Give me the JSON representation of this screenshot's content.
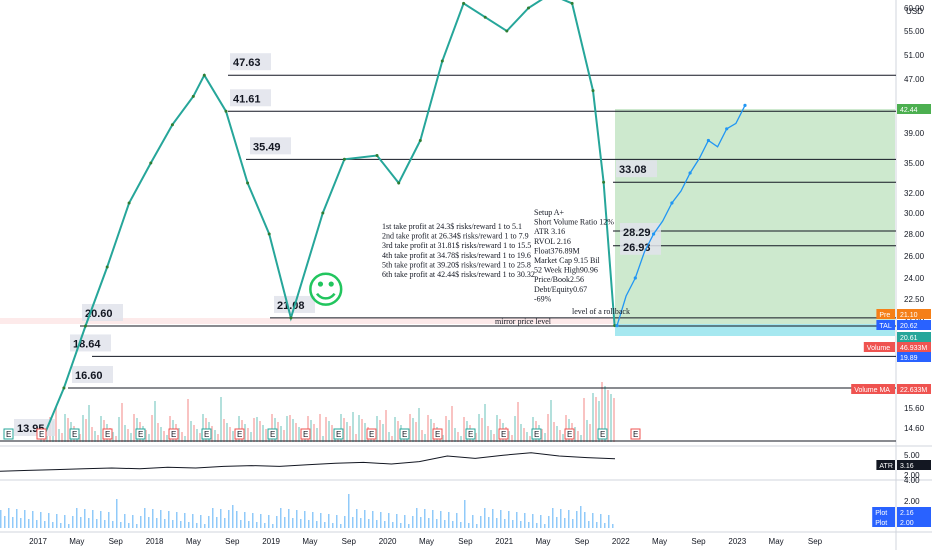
{
  "chart_data": {
    "type": "line",
    "currency": "USD",
    "price_axis_ticks": [
      "60.00",
      "55.00",
      "51.00",
      "47.00",
      "42.00",
      "39.00",
      "35.00",
      "32.00",
      "30.00",
      "28.00",
      "26.00",
      "24.00",
      "22.50",
      "21.00",
      "19.80",
      "18.60",
      "16.60",
      "15.60",
      "14.60"
    ],
    "x_ticks": [
      "2017",
      "May",
      "Sep",
      "2018",
      "May",
      "Sep",
      "2019",
      "May",
      "Sep",
      "2020",
      "May",
      "Sep",
      "2021",
      "May",
      "Sep",
      "2022",
      "May",
      "Sep",
      "2023",
      "May",
      "Sep"
    ],
    "price_series": [
      {
        "date": "2017-01",
        "value": 13.95
      },
      {
        "date": "2017-03",
        "value": 16.6
      },
      {
        "date": "2017-05",
        "value": 20.6
      },
      {
        "date": "2017-07",
        "value": 25.0
      },
      {
        "date": "2017-09",
        "value": 31.0
      },
      {
        "date": "2017-11",
        "value": 35.0
      },
      {
        "date": "2018-01",
        "value": 40.0
      },
      {
        "date": "2018-03",
        "value": 44.0
      },
      {
        "date": "2018-04",
        "value": 47.63
      },
      {
        "date": "2018-06",
        "value": 41.61
      },
      {
        "date": "2018-08",
        "value": 33.0
      },
      {
        "date": "2018-10",
        "value": 28.0
      },
      {
        "date": "2018-12",
        "value": 21.08
      },
      {
        "date": "2019-03",
        "value": 30.0
      },
      {
        "date": "2019-05",
        "value": 35.5
      },
      {
        "date": "2019-08",
        "value": 36.0
      },
      {
        "date": "2019-10",
        "value": 33.0
      },
      {
        "date": "2019-12",
        "value": 38.0
      },
      {
        "date": "2020-02",
        "value": 50.0
      },
      {
        "date": "2020-04",
        "value": 61.0
      },
      {
        "date": "2020-06",
        "value": 58.0
      },
      {
        "date": "2020-08",
        "value": 55.0
      },
      {
        "date": "2020-10",
        "value": 60.0
      },
      {
        "date": "2020-12",
        "value": 63.0
      },
      {
        "date": "2021-02",
        "value": 61.0
      },
      {
        "date": "2021-04",
        "value": 45.0
      },
      {
        "date": "2021-05",
        "value": 33.08
      },
      {
        "date": "2021-06",
        "value": 20.62
      }
    ],
    "projection_series": [
      {
        "date": "2021-06",
        "value": 20.62
      },
      {
        "date": "2021-08",
        "value": 24.0
      },
      {
        "date": "2021-10",
        "value": 28.0
      },
      {
        "date": "2021-12",
        "value": 31.0
      },
      {
        "date": "2022-02",
        "value": 34.0
      },
      {
        "date": "2022-04",
        "value": 38.0
      },
      {
        "date": "2022-06",
        "value": 39.5
      },
      {
        "date": "2022-07",
        "value": 42.44
      }
    ],
    "atr_series": [
      1.6,
      1.7,
      1.8,
      1.9,
      2.0,
      1.9,
      2.1,
      2.0,
      2.2,
      2.3,
      2.2,
      2.4,
      2.6,
      2.7,
      2.5,
      2.8,
      3.5,
      3.2,
      3.6,
      3.9,
      3.5,
      3.3,
      3.16
    ],
    "atr_ticks": [
      "5.00",
      "2.00"
    ],
    "plot_ticks": [
      "4.00",
      "2.00"
    ],
    "level_lines": [
      {
        "label": "47.63",
        "value": 47.63
      },
      {
        "label": "41.61",
        "value": 41.61
      },
      {
        "label": "35.49",
        "value": 35.49
      },
      {
        "label": "33.08",
        "value": 33.08
      },
      {
        "label": "28.29",
        "value": 28.29
      },
      {
        "label": "26.93",
        "value": 26.93
      },
      {
        "label": "21.08",
        "value": 21.08
      },
      {
        "label": "20.60",
        "value": 20.6
      },
      {
        "label": "18.64",
        "value": 18.64
      },
      {
        "label": "16.60",
        "value": 16.6
      },
      {
        "label": "13.95",
        "value": 13.95
      }
    ],
    "price_tags": [
      {
        "name": "Pre",
        "value": "21.10",
        "color": "#f57f17"
      },
      {
        "name": "TAL",
        "value": "20.62",
        "color": "#2962ff"
      },
      {
        "name": "",
        "value": "20.61",
        "color": "#26a69a"
      },
      {
        "name": "Volume",
        "value": "46.933M",
        "color": "#ef5350"
      },
      {
        "name": "",
        "value": "19.89",
        "color": "#2962ff"
      },
      {
        "name": "Volume MA",
        "value": "22.633M",
        "color": "#ef5350"
      },
      {
        "name": "",
        "value": "42.44",
        "color": "#4caf50"
      },
      {
        "name": "ATR",
        "value": "3.16",
        "color": "#131722"
      },
      {
        "name": "Plot",
        "value": "2.16",
        "color": "#2962ff"
      },
      {
        "name": "Plot",
        "value": "2.00",
        "color": "#2962ff"
      }
    ],
    "take_profit_notes": [
      "1st take profit at 24.3$ risks/reward 1 to 5.1",
      "2nd take profit at 26.34$ risks/reward 1 to 7.9",
      "3rd take profit at 31.81$ risks/reward 1 to 15.5",
      "4th take profit at 34.78$ risks/reward 1 to 19.6",
      "5th take profit at 39.20$ risks/reward 1 to 25.8",
      "6th take profit at 42.44$ risks/reward 1 to 30.32"
    ],
    "setup_notes": [
      "Setup A+",
      "Short Volume Ratio 12%",
      "ATR 3.16",
      "RVOL 2.16",
      "Float376.89M",
      "Market Cap 9.15 Bil",
      "52 Week High90.96",
      "Price/Book2.56",
      "Debt/Equity0.67",
      "-69%"
    ],
    "annotations": {
      "rollback": "level of a rollback",
      "mirror": "mirror price level",
      "smiley": "☺"
    },
    "earnings_marker": "E",
    "colors": {
      "up": "#26a69a",
      "down": "#ef5350",
      "projection": "#2196f3",
      "target_zone": "#4caf50",
      "stop_zone": "#00bcd4",
      "smiley": "#22c55e"
    }
  }
}
